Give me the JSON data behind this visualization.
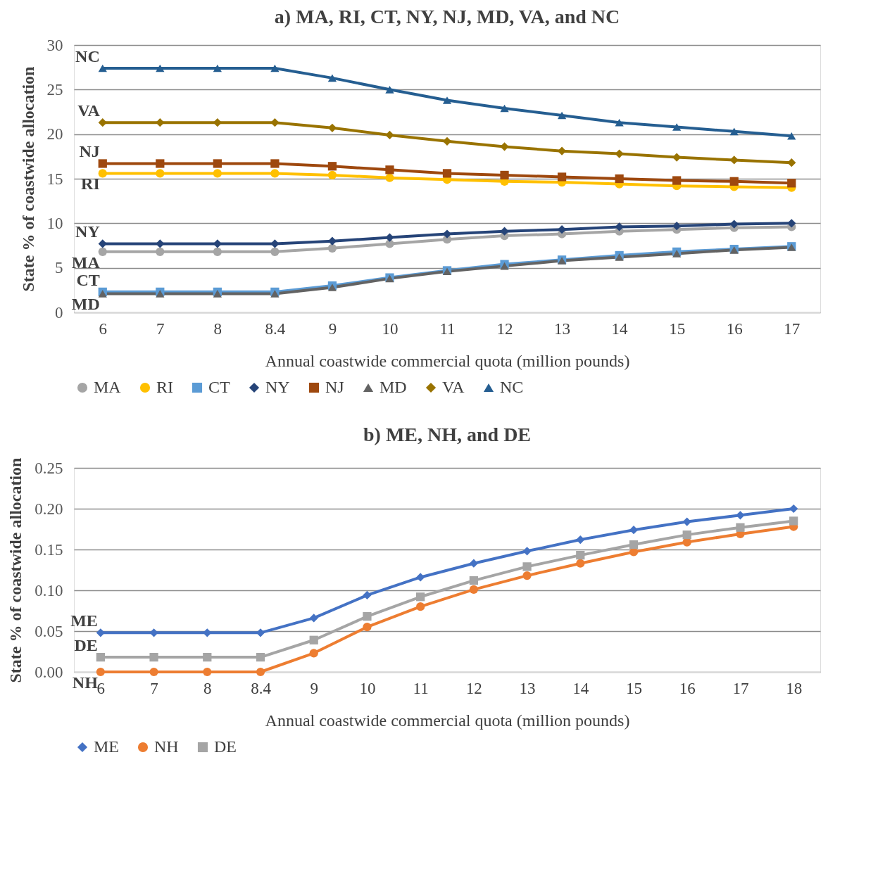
{
  "chart_data": [
    {
      "type": "line",
      "title": "a) MA, RI, CT, NY, NJ, MD, VA, and NC",
      "xlabel": "Annual coastwide commercial quota (million pounds)",
      "ylabel": "State % of coastwide allocation",
      "categories": [
        "6",
        "7",
        "8",
        "8.4",
        "9",
        "10",
        "11",
        "12",
        "13",
        "14",
        "15",
        "16",
        "17"
      ],
      "series": [
        {
          "name": "MA",
          "color": "#a5a5a5",
          "marker": "circle",
          "values": [
            6.8,
            6.8,
            6.8,
            6.8,
            7.2,
            7.7,
            8.2,
            8.6,
            8.8,
            9.1,
            9.3,
            9.5,
            9.6
          ]
        },
        {
          "name": "RI",
          "color": "#ffc000",
          "marker": "circle",
          "values": [
            15.6,
            15.6,
            15.6,
            15.6,
            15.4,
            15.1,
            14.9,
            14.7,
            14.6,
            14.4,
            14.2,
            14.1,
            14.0
          ]
        },
        {
          "name": "CT",
          "color": "#5b9bd5",
          "marker": "square",
          "values": [
            2.3,
            2.3,
            2.3,
            2.3,
            3.0,
            3.9,
            4.7,
            5.4,
            5.9,
            6.4,
            6.8,
            7.1,
            7.4
          ]
        },
        {
          "name": "NY",
          "color": "#264478",
          "marker": "diamond",
          "values": [
            7.7,
            7.7,
            7.7,
            7.7,
            8.0,
            8.4,
            8.8,
            9.1,
            9.3,
            9.6,
            9.7,
            9.9,
            10.0
          ]
        },
        {
          "name": "NJ",
          "color": "#9e480e",
          "marker": "square",
          "values": [
            16.7,
            16.7,
            16.7,
            16.7,
            16.4,
            16.0,
            15.6,
            15.4,
            15.2,
            15.0,
            14.8,
            14.7,
            14.5
          ]
        },
        {
          "name": "MD",
          "color": "#636363",
          "marker": "triangle",
          "values": [
            2.1,
            2.1,
            2.1,
            2.1,
            2.8,
            3.8,
            4.6,
            5.2,
            5.8,
            6.2,
            6.6,
            7.0,
            7.3
          ]
        },
        {
          "name": "VA",
          "color": "#997300",
          "marker": "diamond",
          "values": [
            21.3,
            21.3,
            21.3,
            21.3,
            20.7,
            19.9,
            19.2,
            18.6,
            18.1,
            17.8,
            17.4,
            17.1,
            16.8
          ]
        },
        {
          "name": "NC",
          "color": "#255e91",
          "marker": "triangle",
          "values": [
            27.4,
            27.4,
            27.4,
            27.4,
            26.3,
            25.0,
            23.8,
            22.9,
            22.1,
            21.3,
            20.8,
            20.3,
            19.8
          ]
        }
      ],
      "ylim": [
        0,
        30
      ],
      "yticks": [
        0,
        5,
        10,
        15,
        20,
        25,
        30
      ],
      "grid": "y",
      "legend": "bottom"
    },
    {
      "type": "line",
      "title": "b) ME, NH, and DE",
      "xlabel": "Annual coastwide commercial quota (million pounds)",
      "ylabel": "State  % of coastwide allocation",
      "categories": [
        "6",
        "7",
        "8",
        "8.4",
        "9",
        "10",
        "11",
        "12",
        "13",
        "14",
        "15",
        "16",
        "17",
        "18"
      ],
      "series": [
        {
          "name": "ME",
          "color": "#4472c4",
          "marker": "diamond",
          "values": [
            0.048,
            0.048,
            0.048,
            0.048,
            0.066,
            0.094,
            0.116,
            0.133,
            0.148,
            0.162,
            0.174,
            0.184,
            0.192,
            0.2
          ]
        },
        {
          "name": "NH",
          "color": "#ed7d31",
          "marker": "circle",
          "values": [
            0.0,
            0.0,
            0.0,
            0.0,
            0.023,
            0.055,
            0.08,
            0.101,
            0.118,
            0.133,
            0.147,
            0.159,
            0.169,
            0.178
          ]
        },
        {
          "name": "DE",
          "color": "#a5a5a5",
          "marker": "square",
          "values": [
            0.018,
            0.018,
            0.018,
            0.018,
            0.039,
            0.068,
            0.092,
            0.112,
            0.129,
            0.143,
            0.156,
            0.168,
            0.177,
            0.185
          ]
        }
      ],
      "ylim": [
        0,
        0.25
      ],
      "yticks": [
        {
          "value": 0,
          "label": "0.00"
        },
        {
          "value": 0.05,
          "label": "0.05"
        },
        {
          "value": 0.1,
          "label": "0.10"
        },
        {
          "value": 0.15,
          "label": "0.15"
        },
        {
          "value": 0.2,
          "label": "0.20"
        },
        {
          "value": 0.25,
          "label": "0.25"
        }
      ],
      "grid": "y",
      "legend": "bottom"
    }
  ]
}
